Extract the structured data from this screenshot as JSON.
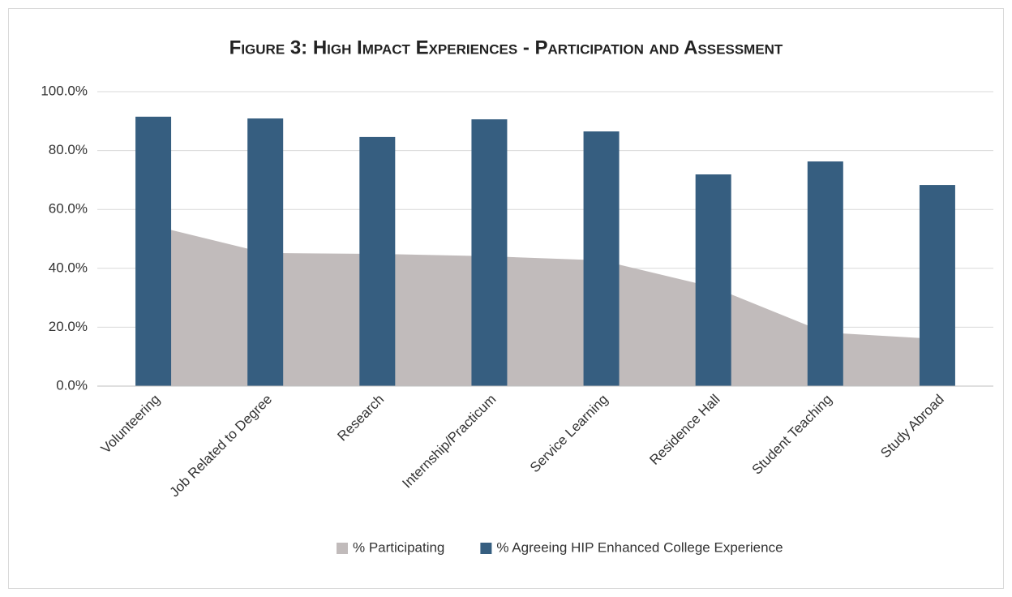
{
  "chart_data": {
    "type": "combo",
    "title": "Figure 3: High Impact Experiences - Participation and Assessment",
    "categories": [
      "Volunteering",
      "Job Related to Degree",
      "Research",
      "Internship/Practicum",
      "Service Learning",
      "Residence Hall",
      "Student Teaching",
      "Study Abroad"
    ],
    "series": [
      {
        "name": "% Participating",
        "type": "area",
        "color": "#c1bbbb",
        "values": [
          54.5,
          45.2,
          44.9,
          44.1,
          42.7,
          33.6,
          18.2,
          16.0
        ]
      },
      {
        "name": "% Agreeing HIP Enhanced College Experience",
        "type": "bar",
        "color": "#365e80",
        "values": [
          91.5,
          90.9,
          84.6,
          90.6,
          86.5,
          71.9,
          76.3,
          68.3
        ]
      }
    ],
    "ylim": [
      0,
      100
    ],
    "yticks": [
      {
        "value": 0,
        "label": "0.0%"
      },
      {
        "value": 20,
        "label": "20.0%"
      },
      {
        "value": 40,
        "label": "40.0%"
      },
      {
        "value": 60,
        "label": "60.0%"
      },
      {
        "value": 80,
        "label": "80.0%"
      },
      {
        "value": 100,
        "label": "100.0%"
      }
    ],
    "grid": true,
    "legend": "bottom"
  }
}
